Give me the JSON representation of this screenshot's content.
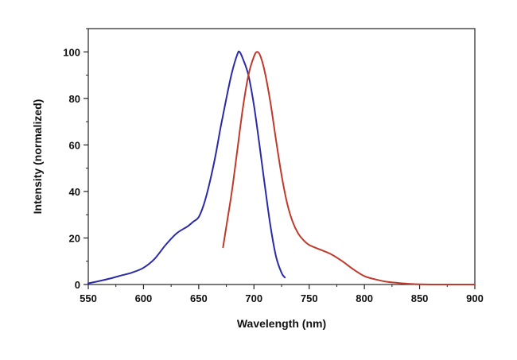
{
  "chart_data": {
    "type": "line",
    "title": "",
    "xlabel": "Wavelength (nm)",
    "ylabel": "Intensity (normalized)",
    "xlim": [
      550,
      900
    ],
    "ylim": [
      0,
      110
    ],
    "x_ticks": [
      550,
      600,
      650,
      700,
      750,
      800,
      850,
      900
    ],
    "y_ticks": [
      0,
      20,
      40,
      60,
      80,
      100
    ],
    "grid": false,
    "legend": "none",
    "series": [
      {
        "color": "#2a2aa8",
        "points": [
          [
            550,
            0.5
          ],
          [
            560,
            1.5
          ],
          [
            570,
            2.6
          ],
          [
            580,
            3.9
          ],
          [
            590,
            5.2
          ],
          [
            600,
            7.2
          ],
          [
            610,
            11
          ],
          [
            620,
            17
          ],
          [
            630,
            22
          ],
          [
            640,
            25
          ],
          [
            645,
            27
          ],
          [
            650,
            29
          ],
          [
            655,
            35
          ],
          [
            660,
            44
          ],
          [
            665,
            55
          ],
          [
            670,
            68
          ],
          [
            675,
            80
          ],
          [
            680,
            91
          ],
          [
            685,
            99
          ],
          [
            687,
            100
          ],
          [
            690,
            97
          ],
          [
            695,
            90
          ],
          [
            700,
            77
          ],
          [
            705,
            60
          ],
          [
            710,
            42
          ],
          [
            715,
            25
          ],
          [
            720,
            12
          ],
          [
            725,
            5
          ],
          [
            728,
            3
          ]
        ]
      },
      {
        "color": "#c0392b",
        "points": [
          [
            672,
            16
          ],
          [
            675,
            25
          ],
          [
            680,
            40
          ],
          [
            685,
            58
          ],
          [
            690,
            76
          ],
          [
            695,
            90
          ],
          [
            700,
            98
          ],
          [
            703,
            100
          ],
          [
            706,
            98
          ],
          [
            710,
            91
          ],
          [
            715,
            78
          ],
          [
            720,
            62
          ],
          [
            725,
            47
          ],
          [
            730,
            35
          ],
          [
            735,
            27
          ],
          [
            740,
            22
          ],
          [
            745,
            19
          ],
          [
            750,
            17
          ],
          [
            760,
            15
          ],
          [
            770,
            13
          ],
          [
            780,
            10
          ],
          [
            790,
            6.5
          ],
          [
            800,
            3.6
          ],
          [
            810,
            2.2
          ],
          [
            820,
            1.2
          ],
          [
            830,
            0.7
          ],
          [
            840,
            0.3
          ],
          [
            850,
            0.1
          ],
          [
            860,
            0
          ],
          [
            880,
            0
          ],
          [
            900,
            0
          ]
        ]
      }
    ]
  }
}
